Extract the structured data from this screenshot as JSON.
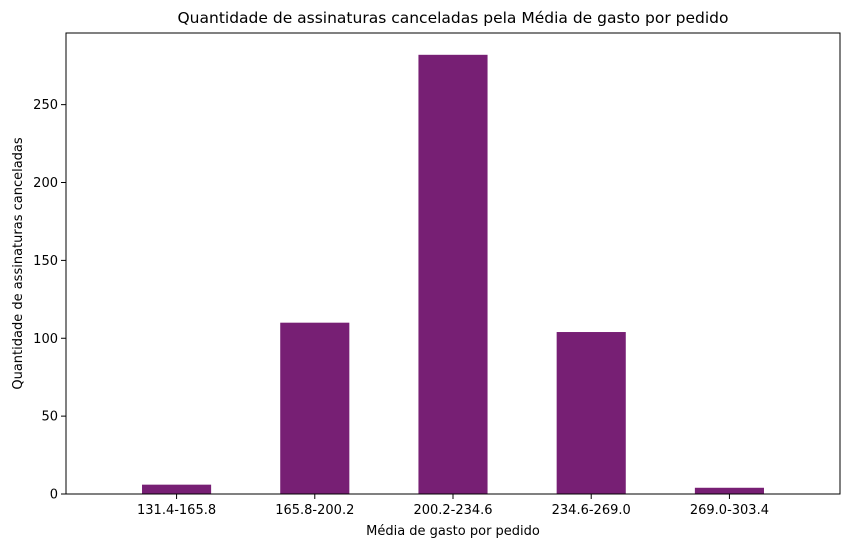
{
  "chart_data": {
    "type": "bar",
    "title": "Quantidade de assinaturas canceladas pela Média de gasto por pedido",
    "xlabel": "Média de gasto por pedido",
    "ylabel": "Quantidade de assinaturas canceladas",
    "categories": [
      "131.4-165.8",
      "165.8-200.2",
      "200.2-234.6",
      "234.6-269.0",
      "269.0-303.4"
    ],
    "values": [
      6,
      110,
      282,
      104,
      4
    ],
    "ylim": [
      0,
      296
    ],
    "yticks": [
      0,
      50,
      100,
      150,
      200,
      250
    ],
    "grid": false,
    "bar_color": "#771f74"
  }
}
